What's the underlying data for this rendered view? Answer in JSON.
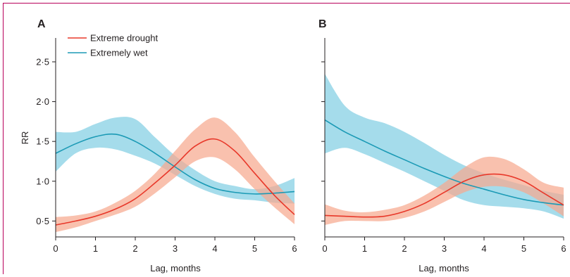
{
  "chart_data": [
    {
      "type": "line",
      "panel_label": "A",
      "xlabel": "Lag, months",
      "ylabel": "RR",
      "xlim": [
        0,
        6
      ],
      "ylim": [
        0.3,
        2.8
      ],
      "x_ticks": [
        0,
        1,
        2,
        3,
        4,
        5,
        6
      ],
      "x_tick_labels": [
        "0",
        "1",
        "2",
        "3",
        "4",
        "5",
        "6"
      ],
      "y_ticks": [
        0.5,
        1.0,
        1.5,
        2.0,
        2.5
      ],
      "y_tick_labels": [
        "0·5",
        "1·0",
        "1·5",
        "2·0",
        "2·5"
      ],
      "grid": false,
      "legend_placement": "top-left",
      "series": [
        {
          "name": "Extreme drought",
          "color": "#e8382a",
          "band_color": "#f6a98f",
          "x": [
            0,
            0.5,
            1,
            1.5,
            2,
            2.5,
            3,
            3.5,
            4,
            4.5,
            5,
            5.5,
            6
          ],
          "y": [
            0.45,
            0.5,
            0.56,
            0.65,
            0.78,
            0.98,
            1.2,
            1.44,
            1.53,
            1.38,
            1.1,
            0.82,
            0.58
          ],
          "lower": [
            0.36,
            0.42,
            0.5,
            0.58,
            0.68,
            0.85,
            1.05,
            1.25,
            1.3,
            1.15,
            0.9,
            0.67,
            0.46
          ],
          "upper": [
            0.55,
            0.57,
            0.62,
            0.73,
            0.88,
            1.1,
            1.38,
            1.65,
            1.8,
            1.62,
            1.3,
            1.0,
            0.72
          ]
        },
        {
          "name": "Extremely wet",
          "color": "#1b9ab5",
          "band_color": "#8fd3e6",
          "x": [
            0,
            0.5,
            1,
            1.5,
            2,
            2.5,
            3,
            3.5,
            4,
            4.5,
            5,
            5.5,
            6
          ],
          "y": [
            1.35,
            1.47,
            1.56,
            1.59,
            1.5,
            1.35,
            1.18,
            1.02,
            0.91,
            0.86,
            0.84,
            0.85,
            0.87
          ],
          "lower": [
            1.12,
            1.35,
            1.42,
            1.4,
            1.32,
            1.22,
            1.08,
            0.94,
            0.84,
            0.78,
            0.76,
            0.73,
            0.72
          ],
          "upper": [
            1.62,
            1.62,
            1.72,
            1.8,
            1.78,
            1.55,
            1.32,
            1.14,
            1.0,
            0.94,
            0.9,
            0.94,
            1.04
          ]
        }
      ]
    },
    {
      "type": "line",
      "panel_label": "B",
      "xlabel": "Lag, months",
      "ylabel": "",
      "xlim": [
        0,
        6
      ],
      "ylim": [
        0.3,
        2.8
      ],
      "x_ticks": [
        0,
        1,
        2,
        3,
        4,
        5,
        6
      ],
      "x_tick_labels": [
        "0",
        "1",
        "2",
        "3",
        "4",
        "5",
        "6"
      ],
      "y_ticks": [
        0.5,
        1.0,
        1.5,
        2.0,
        2.5
      ],
      "y_tick_labels": [],
      "grid": false,
      "series": [
        {
          "name": "Extreme drought",
          "color": "#e8382a",
          "band_color": "#f6a98f",
          "x": [
            0,
            0.5,
            1,
            1.5,
            2,
            2.5,
            3,
            3.5,
            4,
            4.5,
            5,
            5.5,
            6
          ],
          "y": [
            0.57,
            0.56,
            0.55,
            0.56,
            0.62,
            0.72,
            0.86,
            1.0,
            1.08,
            1.08,
            1.0,
            0.85,
            0.7
          ],
          "lower": [
            0.45,
            0.5,
            0.5,
            0.5,
            0.54,
            0.62,
            0.74,
            0.86,
            0.93,
            0.93,
            0.86,
            0.72,
            0.56
          ],
          "upper": [
            0.71,
            0.63,
            0.61,
            0.64,
            0.7,
            0.82,
            0.98,
            1.17,
            1.3,
            1.28,
            1.15,
            0.98,
            0.92
          ]
        },
        {
          "name": "Extremely wet",
          "color": "#1b9ab5",
          "band_color": "#8fd3e6",
          "x": [
            0,
            0.5,
            1,
            1.5,
            2,
            2.5,
            3,
            3.5,
            4,
            4.5,
            5,
            5.5,
            6
          ],
          "y": [
            1.77,
            1.62,
            1.5,
            1.38,
            1.27,
            1.16,
            1.06,
            0.97,
            0.9,
            0.83,
            0.77,
            0.73,
            0.7
          ],
          "lower": [
            1.35,
            1.42,
            1.34,
            1.23,
            1.12,
            1.0,
            0.88,
            0.76,
            0.7,
            0.68,
            0.66,
            0.62,
            0.53
          ],
          "upper": [
            2.35,
            1.95,
            1.8,
            1.73,
            1.62,
            1.48,
            1.33,
            1.2,
            1.1,
            1.02,
            0.95,
            0.88,
            0.83
          ]
        }
      ]
    }
  ]
}
